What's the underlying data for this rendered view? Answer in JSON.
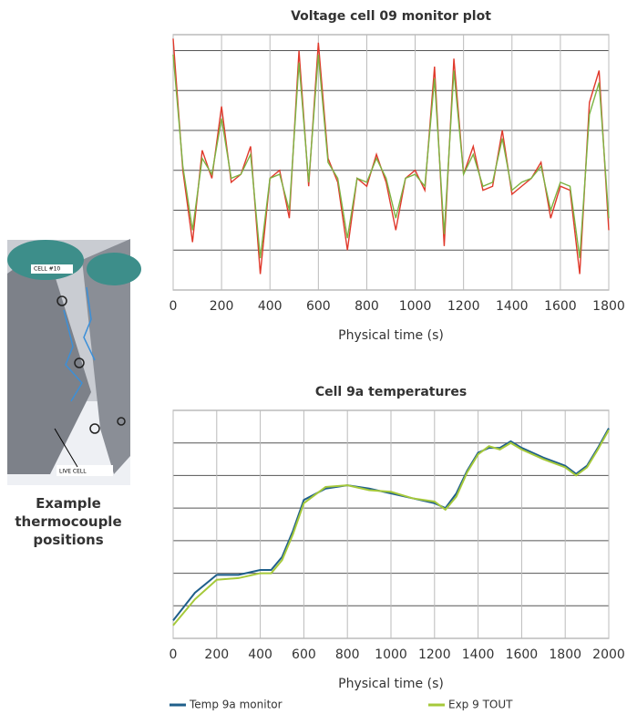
{
  "chart_data": [
    {
      "type": "line",
      "title": "Voltage cell 09 monitor plot",
      "x_label": "Physical time (s)",
      "x": [
        0,
        40,
        80,
        120,
        160,
        200,
        240,
        280,
        320,
        360,
        400,
        440,
        480,
        520,
        560,
        600,
        640,
        680,
        720,
        760,
        800,
        840,
        880,
        920,
        960,
        1000,
        1040,
        1080,
        1120,
        1160,
        1200,
        1240,
        1280,
        1320,
        1360,
        1400,
        1440,
        1480,
        1520,
        1560,
        1600,
        1640,
        1680,
        1720,
        1760,
        1800
      ],
      "series": [
        {
          "color": "#e0392b",
          "values": [
            6.3,
            3.0,
            1.2,
            3.5,
            2.8,
            4.6,
            2.7,
            2.9,
            3.6,
            0.4,
            2.8,
            3.0,
            1.8,
            6.0,
            2.6,
            6.2,
            3.3,
            2.7,
            1.0,
            2.8,
            2.6,
            3.4,
            2.7,
            1.5,
            2.8,
            3.0,
            2.5,
            5.6,
            1.1,
            5.8,
            2.9,
            3.6,
            2.5,
            2.6,
            4.0,
            2.4,
            2.6,
            2.8,
            3.2,
            1.8,
            2.6,
            2.5,
            0.4,
            4.7,
            5.5,
            1.5
          ]
        },
        {
          "color": "#7cb342",
          "values": [
            5.9,
            3.1,
            1.5,
            3.3,
            2.9,
            4.3,
            2.8,
            2.9,
            3.4,
            0.8,
            2.8,
            2.9,
            2.0,
            5.7,
            2.7,
            5.9,
            3.2,
            2.8,
            1.3,
            2.8,
            2.7,
            3.3,
            2.8,
            1.8,
            2.8,
            2.9,
            2.6,
            5.3,
            1.4,
            5.5,
            2.9,
            3.4,
            2.6,
            2.7,
            3.8,
            2.5,
            2.7,
            2.8,
            3.1,
            2.0,
            2.7,
            2.6,
            0.8,
            4.4,
            5.2,
            1.8
          ]
        }
      ],
      "xlim": [
        0,
        1800
      ],
      "xticks": [
        0,
        200,
        400,
        600,
        800,
        1000,
        1200,
        1400,
        1600,
        1800
      ],
      "ylim": [
        0,
        6.4
      ],
      "yticks": [
        1,
        2,
        3,
        4,
        5,
        6
      ],
      "ytick_labels": false,
      "grid": true
    },
    {
      "type": "line",
      "title": "Cell 9a temperatures",
      "x_label": "Physical time (s)",
      "x": [
        0,
        100,
        200,
        300,
        400,
        450,
        500,
        550,
        600,
        700,
        800,
        900,
        1000,
        1100,
        1200,
        1250,
        1300,
        1350,
        1400,
        1450,
        1500,
        1550,
        1600,
        1700,
        1800,
        1850,
        1900,
        1950,
        2000
      ],
      "series": [
        {
          "name": "Temp 9a monitor",
          "color": "#1f5f8b",
          "values": [
            0.55,
            1.4,
            1.95,
            1.95,
            2.1,
            2.1,
            2.5,
            3.3,
            4.25,
            4.6,
            4.7,
            4.6,
            4.45,
            4.3,
            4.15,
            4.0,
            4.45,
            5.15,
            5.7,
            5.85,
            5.85,
            6.05,
            5.85,
            5.55,
            5.3,
            5.05,
            5.3,
            5.85,
            6.45
          ]
        },
        {
          "name": "Exp 9 TOUT",
          "color": "#a6c93a",
          "values": [
            0.4,
            1.2,
            1.8,
            1.85,
            2.0,
            2.0,
            2.4,
            3.2,
            4.15,
            4.65,
            4.7,
            4.55,
            4.5,
            4.3,
            4.2,
            3.95,
            4.35,
            5.1,
            5.65,
            5.9,
            5.8,
            6.0,
            5.8,
            5.5,
            5.25,
            5.0,
            5.25,
            5.8,
            6.4
          ]
        }
      ],
      "xlim": [
        0,
        2000
      ],
      "xticks": [
        0,
        200,
        400,
        600,
        800,
        1000,
        1200,
        1400,
        1600,
        1800,
        2000
      ],
      "ylim": [
        0,
        7
      ],
      "yticks": [
        1,
        2,
        3,
        4,
        5,
        6
      ],
      "ytick_labels": false,
      "grid": true
    }
  ],
  "figure": {
    "caption": "Example thermocouple positions",
    "labels": [
      "CELL #10",
      "LIVE CELL"
    ]
  }
}
